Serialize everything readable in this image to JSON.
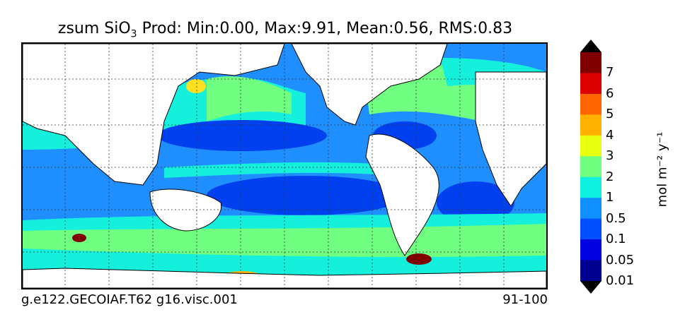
{
  "title": {
    "prefix": "zsum SiO",
    "subscript": "3",
    "suffix": "Prod: Min:0.00, Max:9.91, Mean:0.56, RMS:0.83"
  },
  "footer": {
    "left": "g.e122.GECOIAF.T62 g16.visc.001",
    "right": "91-100"
  },
  "colorbar": {
    "units": "mol m⁻² y⁻¹",
    "labels": [
      "7",
      "6",
      "5",
      "4",
      "3",
      "2",
      "1",
      "0.5",
      "0.1",
      "0.05",
      "0.01"
    ],
    "colors": [
      "#800000",
      "#dd0000",
      "#ff6600",
      "#ffb000",
      "#e8ff10",
      "#70ff80",
      "#10f0e0",
      "#1090ff",
      "#0050ff",
      "#0000e0",
      "#000090"
    ],
    "extend_top": "#000000",
    "extend_bottom": "#000000"
  },
  "map": {
    "ocean_colors": {
      "low": "#0040ee",
      "mid": "#1f8fff",
      "high": "#14f0dc",
      "higher": "#70ff80",
      "peak": "#ffe020",
      "max": "#800000"
    },
    "land_color": "#ffffff",
    "gridlines": "dotted"
  }
}
